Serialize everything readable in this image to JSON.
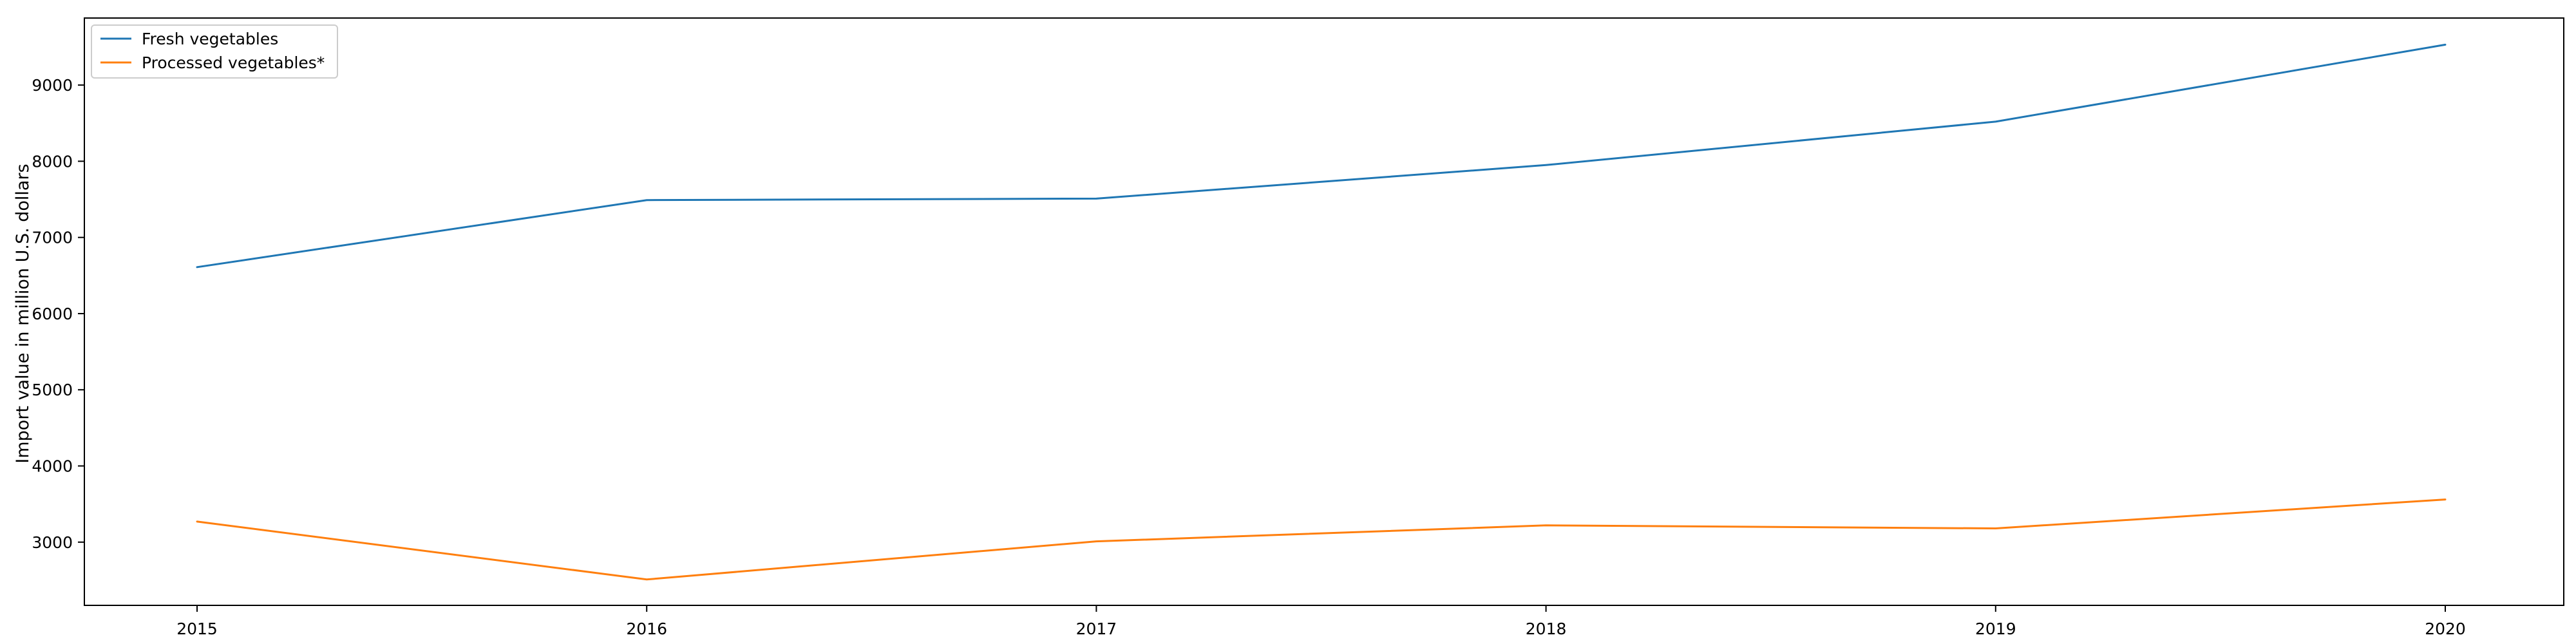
{
  "chart_data": {
    "type": "line",
    "title": "",
    "xlabel": "",
    "ylabel": "Import value in million U.S. dollars",
    "x": [
      "2015",
      "2016",
      "2017",
      "2018",
      "2019",
      "2020"
    ],
    "x_ticks": [
      "2015",
      "2016",
      "2017",
      "2018",
      "2019",
      "2020"
    ],
    "y_ticks": [
      "3000",
      "4000",
      "5000",
      "6000",
      "7000",
      "8000",
      "9000"
    ],
    "ylim": [
      2170,
      9880
    ],
    "grid": false,
    "legend_position": "top-left",
    "series": [
      {
        "name": "Fresh vegetables",
        "color": "#1f77b4",
        "values": [
          6610,
          7490,
          7510,
          7950,
          8520,
          9530
        ]
      },
      {
        "name": "Processed vegetables*",
        "color": "#ff7f0e",
        "values": [
          3270,
          2510,
          3010,
          3220,
          3180,
          3560
        ]
      }
    ]
  }
}
